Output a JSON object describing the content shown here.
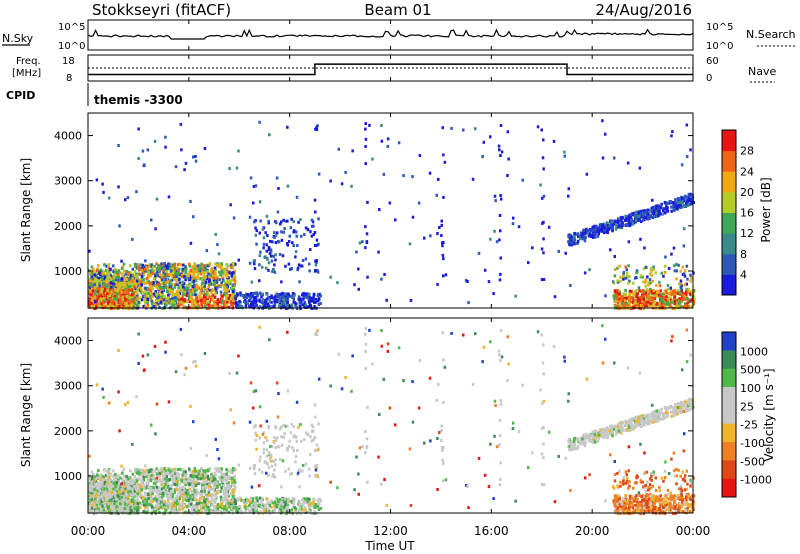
{
  "header": {
    "station": "Stokkseyri (fitACF)",
    "beam": "Beam 01",
    "date": "24/Aug/2016"
  },
  "noise_panel": {
    "left_label": "N.Sky",
    "right_label": "N.Search",
    "left_ticks": [
      "10^5",
      "10^0"
    ],
    "right_ticks": [
      "10^5",
      "10^0"
    ]
  },
  "freq_panel": {
    "left_label_1": "Freq.",
    "left_label_2": "[MHz]",
    "right_label": "Nave",
    "left_ticks": [
      "18",
      "8"
    ],
    "right_ticks": [
      "60",
      "0"
    ]
  },
  "cpid": {
    "label": "CPID",
    "value": "themis -3300"
  },
  "power_panel": {
    "ylabel": "Slant Range [km]",
    "yticks": [
      "1000",
      "2000",
      "3000",
      "4000"
    ],
    "colorbar_label": "Power [dB]",
    "colorbar_ticks": [
      "4",
      "8",
      "12",
      "16",
      "20",
      "24",
      "28"
    ],
    "colors": [
      "#1a1adc",
      "#2d58b8",
      "#3b8a8a",
      "#3fa858",
      "#b4cc26",
      "#f0a814",
      "#ee6414",
      "#e61414"
    ]
  },
  "velocity_panel": {
    "ylabel": "Slant Range [km]",
    "yticks": [
      "1000",
      "2000",
      "3000",
      "4000"
    ],
    "colorbar_label": "Velocity [m s⁻¹]",
    "colorbar_ticks": [
      "1000",
      "500",
      "100",
      "25",
      "-25",
      "-100",
      "-500",
      "-1000"
    ],
    "colors": [
      "#2040c8",
      "#3a8a5a",
      "#50b848",
      "#c8c8c8",
      "#c8c8c8",
      "#f0b428",
      "#f08020",
      "#e04818",
      "#e61414"
    ]
  },
  "xaxis": {
    "label": "Time UT",
    "ticks": [
      "00:00",
      "04:00",
      "08:00",
      "12:00",
      "16:00",
      "20:00",
      "00:00"
    ]
  },
  "chart_data": {
    "type": "heatmap",
    "x_range_hours": [
      0,
      24
    ],
    "y_range_km": [
      180,
      4500
    ],
    "freq_mhz": {
      "t": [
        0,
        9,
        9,
        19,
        19,
        24
      ],
      "v": [
        10.5,
        10.5,
        14.5,
        14.5,
        10.5,
        10.5
      ]
    },
    "nave": {
      "t": [
        0,
        24
      ],
      "v": [
        30,
        30
      ]
    },
    "scatter_regions": [
      {
        "t": [
          0.0,
          1.8
        ],
        "r": [
          200,
          1200
        ],
        "power": "high",
        "velocity": "low"
      },
      {
        "t": [
          1.8,
          5.8
        ],
        "r": [
          200,
          1200
        ],
        "power": "medium",
        "velocity": "low"
      },
      {
        "t": [
          5.8,
          9.0
        ],
        "r": [
          200,
          600
        ],
        "power": "low",
        "velocity": "low"
      },
      {
        "t": [
          6.5,
          9.0
        ],
        "r": [
          1000,
          2200
        ],
        "power": "low",
        "velocity": "zero"
      },
      {
        "t": [
          19.0,
          24.0
        ],
        "r": [
          1600,
          2800
        ],
        "power": "low",
        "velocity": "zero"
      },
      {
        "t": [
          21.0,
          24.0
        ],
        "r": [
          200,
          1200
        ],
        "power": "high",
        "velocity": "negative"
      }
    ]
  }
}
